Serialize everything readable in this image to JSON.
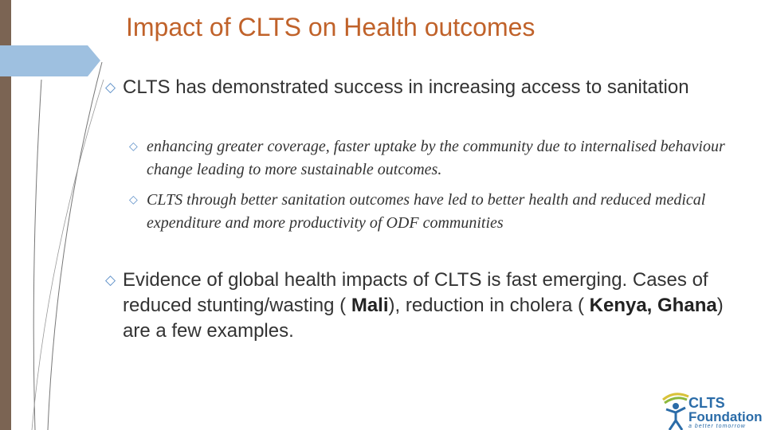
{
  "title": "Impact of CLTS on Health outcomes",
  "bullets": [
    {
      "text": "CLTS has demonstrated success in increasing access to sanitation",
      "sub": [
        "enhancing greater coverage, faster uptake by the community due to internalised behaviour change leading to more sustainable outcomes.",
        "CLTS through better sanitation outcomes have led to better health and reduced medical expenditure and more productivity of ODF communities"
      ]
    },
    {
      "parts": [
        {
          "text": "Evidence of global health impacts of CLTS is fast emerging. Cases of reduced stunting/wasting ( ",
          "bold": false
        },
        {
          "text": "Mali",
          "bold": true
        },
        {
          "text": "), reduction in cholera ( ",
          "bold": false
        },
        {
          "text": "Kenya, Ghana",
          "bold": true
        },
        {
          "text": ") are a few examples.",
          "bold": false
        }
      ]
    }
  ],
  "logo": {
    "name": "CLTS",
    "name2": "Foundation",
    "tagline": "a better tomorrow"
  }
}
